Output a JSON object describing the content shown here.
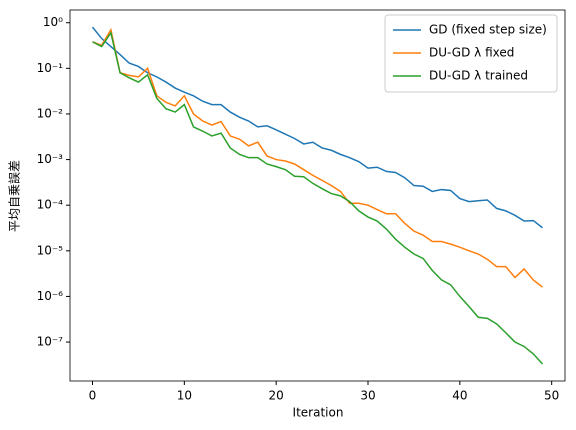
{
  "chart_data": {
    "type": "line",
    "xlabel": "Iteration",
    "ylabel": "平均自乗誤差",
    "yscale": "log",
    "legend": "upper right",
    "x": [
      0,
      1,
      2,
      3,
      4,
      5,
      6,
      7,
      8,
      9,
      10,
      11,
      12,
      13,
      14,
      15,
      16,
      17,
      18,
      19,
      20,
      21,
      22,
      23,
      24,
      25,
      26,
      27,
      28,
      29,
      30,
      31,
      32,
      33,
      34,
      35,
      36,
      37,
      38,
      39,
      40,
      41,
      42,
      43,
      44,
      45,
      46,
      47,
      48,
      49
    ],
    "xlim": [
      -2.45,
      51.45
    ],
    "xticks": [
      0,
      10,
      20,
      30,
      40,
      50
    ],
    "ylim": [
      1.4e-08,
      1.9
    ],
    "yticks": [
      {
        "value": 1,
        "label": "10⁰"
      },
      {
        "value": 0.1,
        "label": "10⁻¹"
      },
      {
        "value": 0.01,
        "label": "10⁻²"
      },
      {
        "value": 0.001,
        "label": "10⁻³"
      },
      {
        "value": 0.0001,
        "label": "10⁻⁴"
      },
      {
        "value": 1e-05,
        "label": "10⁻⁵"
      },
      {
        "value": 1e-06,
        "label": "10⁻⁶"
      },
      {
        "value": 1e-07,
        "label": "10⁻⁷"
      }
    ],
    "series": [
      {
        "name": "GD (fixed step size)",
        "color": "#1f77b4",
        "values": [
          0.8,
          0.45,
          0.3,
          0.2,
          0.13,
          0.11,
          0.08,
          0.065,
          0.05,
          0.037,
          0.03,
          0.025,
          0.019,
          0.016,
          0.016,
          0.011,
          0.0085,
          0.007,
          0.0052,
          0.0055,
          0.0045,
          0.0036,
          0.0029,
          0.0022,
          0.0024,
          0.0018,
          0.0016,
          0.0013,
          0.0011,
          0.0009,
          0.00065,
          0.00068,
          0.00055,
          0.00052,
          0.0004,
          0.00027,
          0.00026,
          0.0002,
          0.00022,
          0.00021,
          0.00014,
          0.00012,
          0.000125,
          0.00013,
          8.5e-05,
          7.5e-05,
          6e-05,
          4.5e-05,
          4.6e-05,
          3.2e-05
        ]
      },
      {
        "name": "DU-GD λ fixed",
        "color": "#ff7f0e",
        "values": [
          0.38,
          0.32,
          0.7,
          0.08,
          0.07,
          0.065,
          0.1,
          0.025,
          0.018,
          0.015,
          0.025,
          0.01,
          0.007,
          0.0057,
          0.0068,
          0.0033,
          0.0028,
          0.002,
          0.0024,
          0.0012,
          0.001,
          0.00093,
          0.0008,
          0.0006,
          0.00045,
          0.00035,
          0.00027,
          0.0002,
          0.00011,
          0.00011,
          0.0001,
          8e-05,
          6.5e-05,
          6.5e-05,
          4e-05,
          2.7e-05,
          2.2e-05,
          1.6e-05,
          1.6e-05,
          1.4e-05,
          1.2e-05,
          1e-05,
          8.5e-06,
          6.5e-06,
          4.5e-06,
          4.5e-06,
          2.6e-06,
          4e-06,
          2.3e-06,
          1.6e-06
        ]
      },
      {
        "name": "DU-GD λ trained",
        "color": "#2ca02c",
        "values": [
          0.38,
          0.3,
          0.6,
          0.08,
          0.062,
          0.05,
          0.072,
          0.022,
          0.013,
          0.011,
          0.016,
          0.0052,
          0.0042,
          0.0033,
          0.0038,
          0.0018,
          0.0013,
          0.0011,
          0.0011,
          0.0008,
          0.0007,
          0.0006,
          0.00043,
          0.00042,
          0.0003,
          0.00023,
          0.00018,
          0.00016,
          0.00012,
          7.5e-05,
          5.5e-05,
          4.5e-05,
          3e-05,
          1.8e-05,
          1.2e-05,
          8.5e-06,
          6.8e-06,
          3.7e-06,
          2.3e-06,
          1.8e-06,
          1e-06,
          6e-07,
          3.5e-07,
          3.3e-07,
          2.5e-07,
          1.6e-07,
          1e-07,
          8e-08,
          5.5e-08,
          3.3e-08
        ]
      }
    ]
  }
}
